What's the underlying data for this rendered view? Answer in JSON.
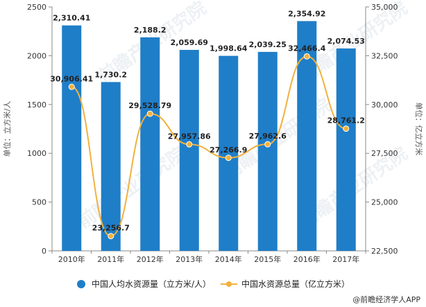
{
  "chart_data": {
    "type": "bar+line",
    "categories": [
      "2010年",
      "2011年",
      "2012年",
      "2013年",
      "2014年",
      "2015年",
      "2016年",
      "2017年"
    ],
    "series": [
      {
        "name": "中国人均水资源量（立方米/人）",
        "type": "bar",
        "axis": "left",
        "color": "#1f7ec8",
        "values": [
          2310.41,
          1730.2,
          2188.2,
          2059.69,
          1998.64,
          2039.25,
          2354.92,
          2074.53
        ],
        "labels": [
          "2,310.41",
          "1,730.2",
          "2,188.2",
          "2,059.69",
          "1,998.64",
          "2,039.25",
          "2,354.92",
          "2,074.53"
        ]
      },
      {
        "name": "中国水资源总量（亿立方米）",
        "type": "line",
        "axis": "right",
        "color": "#f2b13c",
        "values": [
          30906.41,
          23256.7,
          29528.79,
          27957.86,
          27266.9,
          27962.6,
          32466.4,
          28761.2
        ],
        "labels": [
          "30,906.41",
          "23,256.7",
          "29,528.79",
          "27,957.86",
          "27,266.9",
          "27,962.6",
          "32,466.4",
          "28,761.2"
        ]
      }
    ],
    "left_axis": {
      "title": "单位：立方米/人",
      "ylim": [
        0,
        2500
      ],
      "ticks": [
        0,
        500,
        1000,
        1500,
        2000,
        2500
      ],
      "tick_labels": [
        "0",
        "500",
        "1000",
        "1500",
        "2000",
        "2500"
      ]
    },
    "right_axis": {
      "title": "单位：亿立方米",
      "ylim": [
        22500,
        35000
      ],
      "ticks": [
        22500,
        25000,
        27500,
        30000,
        32500,
        35000
      ],
      "tick_labels": [
        "22,500",
        "25,000",
        "27,500",
        "30,000",
        "32,500",
        "35,000"
      ]
    },
    "grid": false,
    "legend_position": "bottom"
  },
  "source": "@前瞻经济学人APP",
  "watermark": "前瞻产业研究院"
}
